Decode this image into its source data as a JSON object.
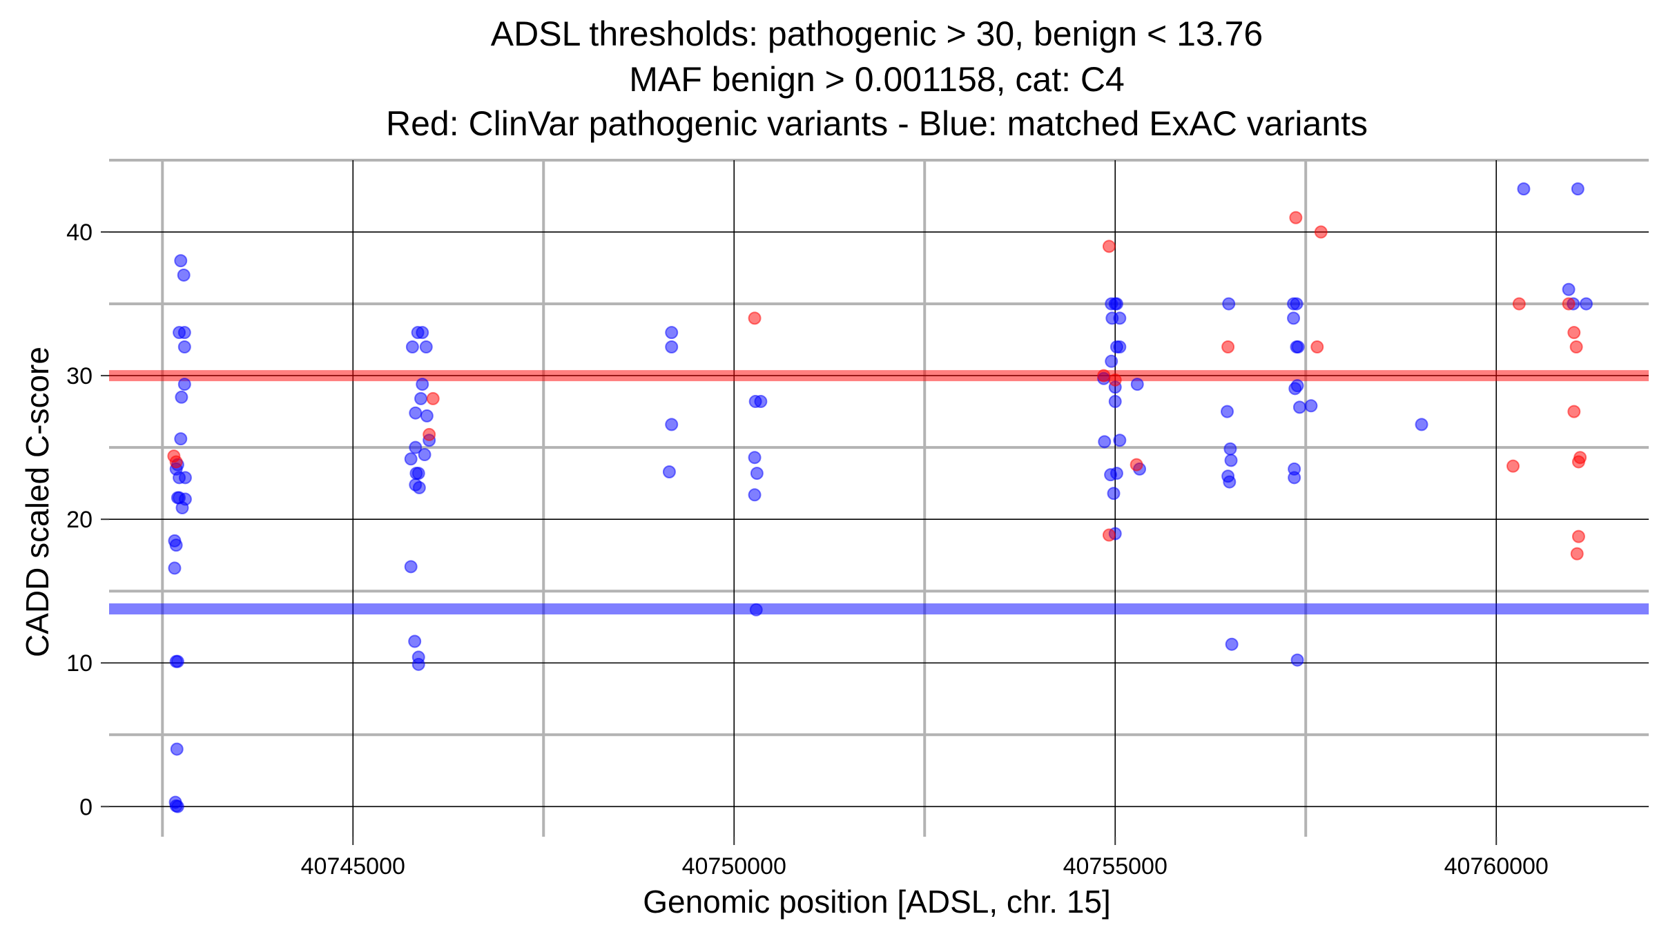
{
  "chart_data": {
    "type": "scatter",
    "title": [
      "ADSL thresholds: pathogenic > 30, benign < 13.76",
      "MAF benign > 0.001158, cat: C4",
      "Red: ClinVar pathogenic variants - Blue: matched ExAC variants"
    ],
    "xlabel": "Genomic position [ADSL, chr. 15]",
    "ylabel": "CADD scaled C-score",
    "xlim": [
      40741800,
      40762000
    ],
    "ylim": [
      -2.1,
      45
    ],
    "x_ticks": [
      40745000,
      40750000,
      40755000,
      40760000
    ],
    "x_tick_labels": [
      "40745000",
      "40750000",
      "40755000",
      "40760000"
    ],
    "y_ticks": [
      0,
      10,
      20,
      30,
      40
    ],
    "y_tick_labels": [
      "0",
      "10",
      "20",
      "30",
      "40"
    ],
    "thresholds": {
      "pathogenic": 30,
      "benign": 13.76,
      "pathogenic_color": "#ff0000",
      "benign_color": "#0000ff"
    },
    "series": [
      {
        "name": "ClinVar pathogenic variants",
        "color": "#ff0000",
        "points": [
          [
            40742650,
            24.4
          ],
          [
            40742680,
            24.0
          ],
          [
            40746050,
            28.4
          ],
          [
            40746000,
            25.9
          ],
          [
            40750270,
            34.0
          ],
          [
            40754920,
            39.0
          ],
          [
            40754850,
            30.0
          ],
          [
            40755000,
            29.7
          ],
          [
            40755280,
            23.8
          ],
          [
            40754920,
            18.9
          ],
          [
            40756480,
            32.0
          ],
          [
            40757370,
            41.0
          ],
          [
            40757700,
            40.0
          ],
          [
            40757650,
            32.0
          ],
          [
            40760300,
            35.0
          ],
          [
            40760220,
            23.7
          ],
          [
            40760950,
            35.0
          ],
          [
            40761020,
            33.0
          ],
          [
            40761050,
            32.0
          ],
          [
            40761020,
            27.5
          ],
          [
            40761100,
            24.3
          ],
          [
            40761080,
            24.0
          ],
          [
            40761080,
            18.8
          ],
          [
            40761060,
            17.6
          ]
        ]
      },
      {
        "name": "matched ExAC variants",
        "color": "#0000ff",
        "points": [
          [
            40742740,
            38.0
          ],
          [
            40742780,
            37.0
          ],
          [
            40742720,
            33.0
          ],
          [
            40742790,
            33.0
          ],
          [
            40742790,
            32.0
          ],
          [
            40742790,
            29.4
          ],
          [
            40742750,
            28.5
          ],
          [
            40742740,
            25.6
          ],
          [
            40742700,
            23.8
          ],
          [
            40742720,
            22.9
          ],
          [
            40742800,
            22.9
          ],
          [
            40742680,
            23.5
          ],
          [
            40742700,
            21.5
          ],
          [
            40742720,
            21.5
          ],
          [
            40742800,
            21.4
          ],
          [
            40742760,
            20.8
          ],
          [
            40742660,
            18.5
          ],
          [
            40742680,
            18.2
          ],
          [
            40742660,
            16.6
          ],
          [
            40742680,
            10.1
          ],
          [
            40742700,
            10.1
          ],
          [
            40742690,
            4.0
          ],
          [
            40742670,
            0.3
          ],
          [
            40742680,
            0.05
          ],
          [
            40742700,
            0.0
          ],
          [
            40745850,
            33.0
          ],
          [
            40745910,
            33.0
          ],
          [
            40745780,
            32.0
          ],
          [
            40745960,
            32.0
          ],
          [
            40745910,
            29.4
          ],
          [
            40745890,
            28.4
          ],
          [
            40745820,
            27.4
          ],
          [
            40745970,
            27.2
          ],
          [
            40746000,
            25.5
          ],
          [
            40745820,
            25.0
          ],
          [
            40745940,
            24.5
          ],
          [
            40745760,
            24.2
          ],
          [
            40745860,
            23.2
          ],
          [
            40745830,
            23.2
          ],
          [
            40745820,
            22.4
          ],
          [
            40745870,
            22.2
          ],
          [
            40745760,
            16.7
          ],
          [
            40745810,
            11.5
          ],
          [
            40745860,
            10.4
          ],
          [
            40745860,
            9.9
          ],
          [
            40749180,
            33.0
          ],
          [
            40749180,
            32.0
          ],
          [
            40749180,
            26.6
          ],
          [
            40749150,
            23.3
          ],
          [
            40750280,
            28.2
          ],
          [
            40750350,
            28.2
          ],
          [
            40750270,
            24.3
          ],
          [
            40750300,
            23.2
          ],
          [
            40750270,
            21.7
          ],
          [
            40750290,
            13.7
          ],
          [
            40754950,
            35.0
          ],
          [
            40755000,
            35.0
          ],
          [
            40755020,
            35.0
          ],
          [
            40754960,
            34.0
          ],
          [
            40755060,
            34.0
          ],
          [
            40755020,
            32.0
          ],
          [
            40755060,
            32.0
          ],
          [
            40754950,
            31.0
          ],
          [
            40754850,
            29.8
          ],
          [
            40755000,
            29.2
          ],
          [
            40755290,
            29.4
          ],
          [
            40755000,
            28.2
          ],
          [
            40755060,
            25.5
          ],
          [
            40754860,
            25.4
          ],
          [
            40755320,
            23.5
          ],
          [
            40755020,
            23.2
          ],
          [
            40754940,
            23.1
          ],
          [
            40754980,
            21.8
          ],
          [
            40755000,
            19.0
          ],
          [
            40756490,
            35.0
          ],
          [
            40756470,
            27.5
          ],
          [
            40756510,
            24.9
          ],
          [
            40756520,
            24.1
          ],
          [
            40756480,
            23.0
          ],
          [
            40756500,
            22.6
          ],
          [
            40756530,
            11.3
          ],
          [
            40757340,
            35.0
          ],
          [
            40757380,
            35.0
          ],
          [
            40757340,
            34.0
          ],
          [
            40757380,
            32.0
          ],
          [
            40757400,
            32.0
          ],
          [
            40757390,
            29.3
          ],
          [
            40757360,
            29.1
          ],
          [
            40757420,
            27.8
          ],
          [
            40757570,
            27.9
          ],
          [
            40757350,
            23.5
          ],
          [
            40757350,
            22.9
          ],
          [
            40757390,
            10.2
          ],
          [
            40759020,
            26.6
          ],
          [
            40760360,
            43.0
          ],
          [
            40761070,
            43.0
          ],
          [
            40760950,
            36.0
          ],
          [
            40761010,
            35.0
          ],
          [
            40761180,
            35.0
          ]
        ]
      }
    ]
  }
}
